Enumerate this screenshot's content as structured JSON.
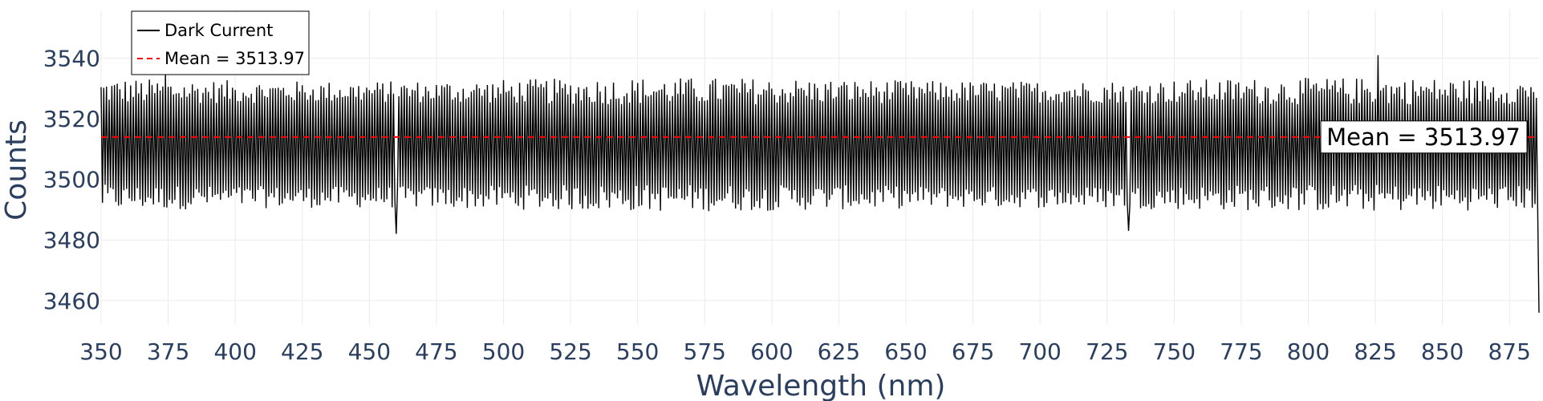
{
  "chart_data": {
    "type": "line",
    "title": "",
    "xlabel": "Wavelength (nm)",
    "ylabel": "Counts",
    "xlim": [
      350,
      886
    ],
    "ylim": [
      3452,
      3556
    ],
    "xticks": [
      350,
      375,
      400,
      425,
      450,
      475,
      500,
      525,
      550,
      575,
      600,
      625,
      650,
      675,
      700,
      725,
      750,
      775,
      800,
      825,
      850,
      875
    ],
    "yticks": [
      3460,
      3480,
      3500,
      3520,
      3540
    ],
    "grid": true,
    "legend_position": "top-left",
    "series": [
      {
        "name": "Dark Current",
        "color": "#000000",
        "style": "solid",
        "x_range": [
          350,
          886
        ],
        "approx_upper_peak": 3528,
        "approx_lower_trough": 3495,
        "extremes": [
          {
            "x": 374,
            "y": 3535
          },
          {
            "x": 460,
            "y": 3482
          },
          {
            "x": 733,
            "y": 3483
          },
          {
            "x": 826,
            "y": 3541
          },
          {
            "x": 886,
            "y": 3456
          }
        ]
      },
      {
        "name": "Mean = 3513.97",
        "color": "#ff0000",
        "style": "dashed",
        "value": 3513.97
      }
    ],
    "annotations": [
      {
        "text": "Mean = 3513.97",
        "x": 886,
        "y": 3513.97,
        "anchor": "right"
      }
    ]
  }
}
